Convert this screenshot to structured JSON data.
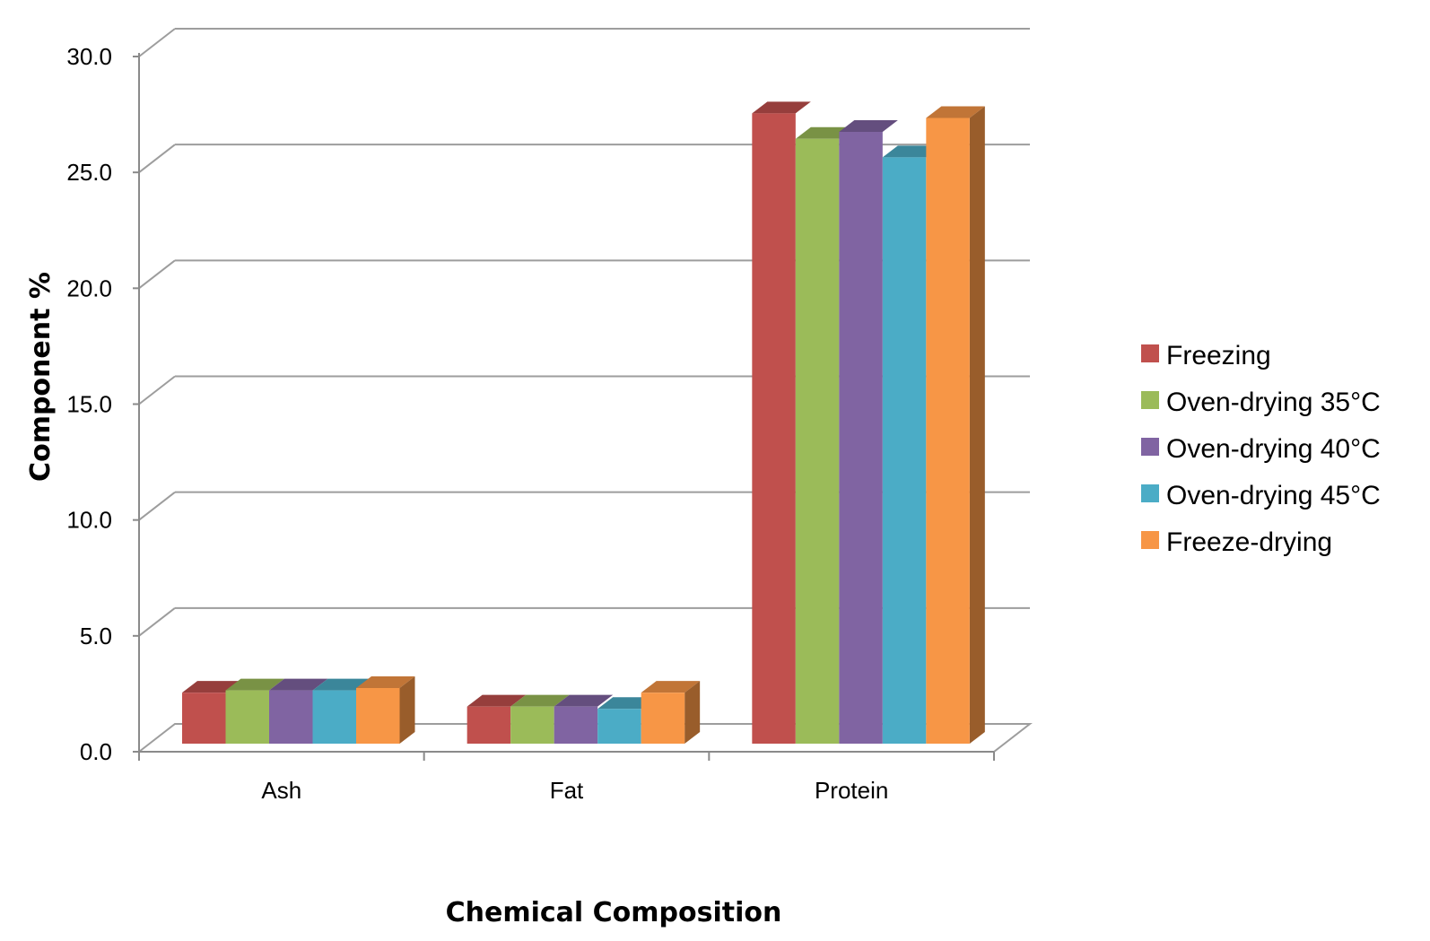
{
  "chart_data": {
    "type": "bar",
    "style": "3d-clustered-column",
    "categories": [
      "Ash",
      "Fat",
      "Protein"
    ],
    "series": [
      {
        "name": "Freezing",
        "color": "#C0504D",
        "values": [
          2.2,
          1.6,
          27.2
        ]
      },
      {
        "name": "Oven-drying 35°C",
        "color": "#9BBB59",
        "values": [
          2.3,
          1.6,
          26.1
        ]
      },
      {
        "name": "Oven-drying 40°C",
        "color": "#8064A2",
        "values": [
          2.3,
          1.6,
          26.4
        ]
      },
      {
        "name": "Oven-drying 45°C",
        "color": "#4BACC6",
        "values": [
          2.3,
          1.5,
          25.3
        ]
      },
      {
        "name": "Freeze-drying",
        "color": "#F79646",
        "values": [
          2.4,
          2.2,
          27.0
        ]
      }
    ],
    "xlabel": "Chemical Composition",
    "ylabel": "Component %",
    "ylim": [
      0,
      30
    ],
    "yticks": [
      "0.0",
      "5.0",
      "10.0",
      "15.0",
      "20.0",
      "25.0",
      "30.0"
    ],
    "ytick_values": [
      0,
      5,
      10,
      15,
      20,
      25,
      30
    ],
    "grid": true,
    "legend_position": "right"
  }
}
